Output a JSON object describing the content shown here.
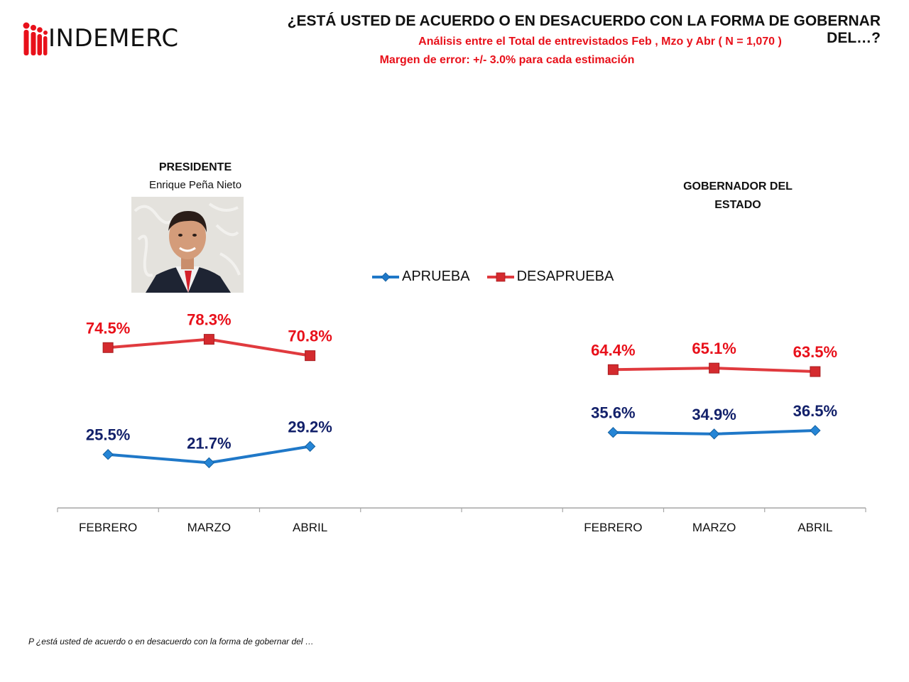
{
  "header": {
    "logo_text": "INDEMERC",
    "title": "¿ESTÁ USTED DE ACUERDO O EN DESACUERDO CON LA FORMA DE GOBERNAR DEL…?",
    "subtitle_1": "Análisis entre el Total de entrevistados Feb , Mzo y Abr  ( N = 1,070 )",
    "subtitle_2": "Margen de error: +/- 3.0% para cada estimación"
  },
  "panels": {
    "president": {
      "title": "PRESIDENTE",
      "name": "Enrique Peña Nieto",
      "photo": "president-portrait-photo"
    },
    "governor": {
      "title": "GOBERNADOR DEL ESTADO"
    }
  },
  "legend": [
    {
      "label": "APRUEBA",
      "color": "#1f78c8",
      "marker": "diamond"
    },
    {
      "label": "DESAPRUEBA",
      "color": "#e03a3e",
      "marker": "square"
    }
  ],
  "footnote": "P ¿está usted de acuerdo o en desacuerdo con la forma de gobernar del …",
  "colors": {
    "aprueba_line": "#1f78c8",
    "aprueba_label": "#12206a",
    "desaprueba_line": "#e03a3e",
    "desaprueba_label": "#e8101a",
    "axis": "#a6a6a6"
  },
  "chart_data": {
    "type": "line",
    "title": "¿ESTÁ USTED DE ACUERDO O EN DESACUERDO CON LA FORMA DE GOBERNAR DEL…?",
    "xlabel": "",
    "ylabel": "",
    "ylim": [
      0,
      100
    ],
    "grid": false,
    "legend_position": "top-center",
    "categories": [
      "FEBRERO",
      "MARZO",
      "ABRIL",
      "",
      "",
      "FEBRERO",
      "MARZO",
      "ABRIL"
    ],
    "groups": [
      {
        "name": "PRESIDENTE - Enrique Peña Nieto",
        "category_indices": [
          0,
          1,
          2
        ]
      },
      {
        "name": "GOBERNADOR DEL ESTADO",
        "category_indices": [
          5,
          6,
          7
        ]
      }
    ],
    "series": [
      {
        "name": "APRUEBA",
        "values": [
          25.5,
          21.7,
          29.2,
          null,
          null,
          35.6,
          34.9,
          36.5
        ],
        "labels": [
          "25.5%",
          "21.7%",
          "29.2%",
          "",
          "",
          "35.6%",
          "34.9%",
          "36.5%"
        ]
      },
      {
        "name": "DESAPRUEBA",
        "values": [
          74.5,
          78.3,
          70.8,
          null,
          null,
          64.4,
          65.1,
          63.5
        ],
        "labels": [
          "74.5%",
          "78.3%",
          "70.8%",
          "",
          "",
          "64.4%",
          "65.1%",
          "63.5%"
        ]
      }
    ]
  }
}
